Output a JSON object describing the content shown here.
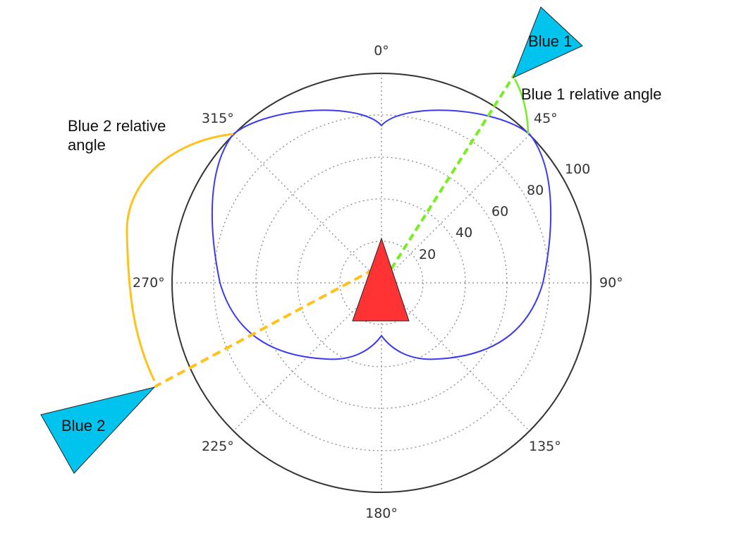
{
  "polar": {
    "angle_labels": [
      "0°",
      "45°",
      "90°",
      "135°",
      "180°",
      "225°",
      "270°",
      "315°"
    ],
    "radial_labels": [
      "20",
      "40",
      "60",
      "80",
      "100"
    ]
  },
  "ships": {
    "center": {
      "color": "#ff3333"
    },
    "blue1": {
      "label": "Blue 1",
      "color": "#00c4ee"
    },
    "blue2": {
      "label": "Blue 2",
      "color": "#00c4ee"
    }
  },
  "annotations": {
    "blue1_relative": "Blue 1 relative angle",
    "blue2_relative_line1": "Blue 2 relative",
    "blue2_relative_line2": "angle"
  },
  "colors": {
    "curve": "#3a3af0",
    "blue1_line": "#77ee22",
    "blue2_line": "#ffc21a",
    "frame": "#333333"
  }
}
